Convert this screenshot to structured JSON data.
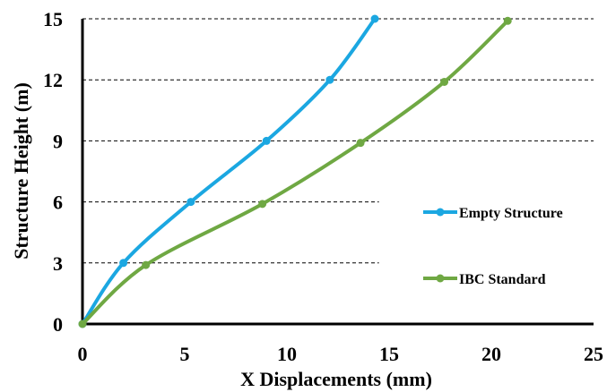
{
  "chart_data": {
    "type": "line",
    "title": "",
    "xlabel": "X Displacements (mm)",
    "ylabel": "Structure Height (m)",
    "xlim": [
      0,
      25
    ],
    "ylim": [
      0,
      15
    ],
    "xticks": [
      0,
      5,
      10,
      15,
      20,
      25
    ],
    "yticks": [
      0,
      3,
      6,
      9,
      12,
      15
    ],
    "xtick_labels": [
      "0",
      "5",
      "10",
      "15",
      "20",
      "25"
    ],
    "ytick_labels": [
      "0",
      "3",
      "6",
      "9",
      "12",
      "15"
    ],
    "grid": "horizontal dashed",
    "legend_position": "right",
    "series": [
      {
        "name": "Empty Structure",
        "color": "#1BA7E1",
        "x": [
          0,
          2.0,
          5.3,
          9.0,
          12.1,
          14.3
        ],
        "y": [
          0,
          3,
          6,
          9,
          12,
          15
        ]
      },
      {
        "name": "IBC Standard",
        "color": "#6FA843",
        "x": [
          0,
          3.1,
          8.8,
          13.6,
          17.7,
          20.8
        ],
        "y": [
          0,
          2.9,
          5.9,
          8.9,
          11.9,
          14.9
        ]
      }
    ]
  }
}
